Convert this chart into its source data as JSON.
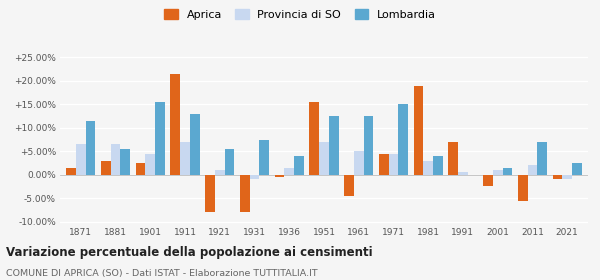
{
  "years": [
    1871,
    1881,
    1901,
    1911,
    1921,
    1931,
    1936,
    1951,
    1961,
    1971,
    1981,
    1991,
    2001,
    2011,
    2021
  ],
  "aprica": [
    1.5,
    3.0,
    2.5,
    21.5,
    -8.0,
    -8.0,
    -0.5,
    15.5,
    -4.5,
    4.5,
    19.0,
    7.0,
    -2.5,
    -5.5,
    -1.0
  ],
  "provincia_so": [
    6.5,
    6.5,
    4.5,
    7.0,
    1.0,
    -1.0,
    1.5,
    7.0,
    5.0,
    4.5,
    3.0,
    0.5,
    1.0,
    2.0,
    -1.0
  ],
  "lombardia": [
    11.5,
    5.5,
    15.5,
    13.0,
    5.5,
    7.5,
    4.0,
    12.5,
    12.5,
    15.0,
    4.0,
    0.0,
    1.5,
    7.0,
    2.5
  ],
  "color_aprica": "#e0651a",
  "color_provincia": "#c8d8f0",
  "color_lombardia": "#5ba8d0",
  "title": "Variazione percentuale della popolazione ai censimenti",
  "subtitle": "COMUNE DI APRICA (SO) - Dati ISTAT - Elaborazione TUTTITALIA.IT",
  "ylim": [
    -10.5,
    26.5
  ],
  "yticks": [
    -10.0,
    -5.0,
    0.0,
    5.0,
    10.0,
    15.0,
    20.0,
    25.0
  ],
  "ytick_labels": [
    "-10.00%",
    "-5.00%",
    "0.00%",
    "+5.00%",
    "+10.00%",
    "+15.00%",
    "+20.00%",
    "+25.00%"
  ],
  "bar_width": 0.28,
  "background_color": "#f5f5f5",
  "legend_labels": [
    "Aprica",
    "Provincia di SO",
    "Lombardia"
  ]
}
